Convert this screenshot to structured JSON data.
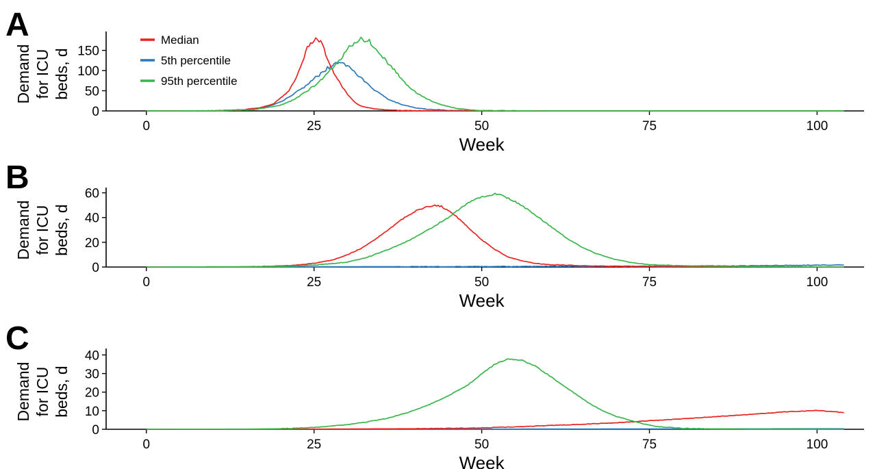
{
  "chart_data": [
    {
      "type": "line",
      "panel_label": "A",
      "xlabel": "Week",
      "ylabel_lines": [
        "Demand",
        "for ICU",
        "beds, d"
      ],
      "xlim": [
        -6,
        107
      ],
      "ylim": [
        0,
        190
      ],
      "xticks": [
        0,
        25,
        50,
        75,
        100
      ],
      "yticks": [
        0,
        50,
        100,
        150
      ],
      "legend": {
        "position": "top-left",
        "entries": [
          "Median",
          "5th percentile",
          "95th percentile"
        ]
      },
      "series": [
        {
          "name": "Median",
          "color": "#e8231f",
          "points": [
            [
              0,
              0
            ],
            [
              10,
              0.4
            ],
            [
              14,
              2
            ],
            [
              17,
              8
            ],
            [
              19,
              18
            ],
            [
              21,
              45
            ],
            [
              22,
              70
            ],
            [
              23,
              110
            ],
            [
              24,
              155
            ],
            [
              25,
              180
            ],
            [
              26,
              170
            ],
            [
              27,
              130
            ],
            [
              28,
              95
            ],
            [
              29,
              65
            ],
            [
              30,
              40
            ],
            [
              31,
              22
            ],
            [
              32,
              12
            ],
            [
              34,
              5
            ],
            [
              36,
              2
            ],
            [
              40,
              0.5
            ],
            [
              45,
              0
            ],
            [
              104,
              0
            ]
          ]
        },
        {
          "name": "5th percentile",
          "color": "#2a78b8",
          "points": [
            [
              0,
              0
            ],
            [
              10,
              0.3
            ],
            [
              15,
              3
            ],
            [
              18,
              10
            ],
            [
              20,
              22
            ],
            [
              22,
              42
            ],
            [
              24,
              65
            ],
            [
              25,
              80
            ],
            [
              26,
              92
            ],
            [
              27,
              106
            ],
            [
              28,
              115
            ],
            [
              29,
              120
            ],
            [
              30,
              112
            ],
            [
              31,
              97
            ],
            [
              32,
              82
            ],
            [
              33,
              66
            ],
            [
              34,
              52
            ],
            [
              35,
              40
            ],
            [
              36,
              30
            ],
            [
              38,
              16
            ],
            [
              40,
              8
            ],
            [
              42,
              4
            ],
            [
              45,
              1.5
            ],
            [
              50,
              0.5
            ],
            [
              55,
              0
            ],
            [
              104,
              0
            ]
          ]
        },
        {
          "name": "95th percentile",
          "color": "#39b54a",
          "points": [
            [
              0,
              0
            ],
            [
              10,
              0.3
            ],
            [
              16,
              3
            ],
            [
              20,
              14
            ],
            [
              22,
              28
            ],
            [
              24,
              50
            ],
            [
              26,
              75
            ],
            [
              28,
              110
            ],
            [
              29,
              130
            ],
            [
              30,
              155
            ],
            [
              31,
              170
            ],
            [
              32,
              180
            ],
            [
              33,
              175
            ],
            [
              34,
              160
            ],
            [
              35,
              140
            ],
            [
              36,
              120
            ],
            [
              37,
              100
            ],
            [
              38,
              80
            ],
            [
              39,
              62
            ],
            [
              40,
              48
            ],
            [
              42,
              28
            ],
            [
              44,
              15
            ],
            [
              46,
              7
            ],
            [
              48,
              3
            ],
            [
              50,
              1
            ],
            [
              55,
              0.3
            ],
            [
              60,
              0
            ],
            [
              104,
              0
            ]
          ]
        }
      ]
    },
    {
      "type": "line",
      "panel_label": "B",
      "xlabel": "Week",
      "ylabel_lines": [
        "Demand",
        "for ICU",
        "beds, d"
      ],
      "xlim": [
        -6,
        107
      ],
      "ylim": [
        0,
        62
      ],
      "xticks": [
        0,
        25,
        50,
        75,
        100
      ],
      "yticks": [
        0,
        20,
        40,
        60
      ],
      "series": [
        {
          "name": "Median",
          "color": "#e8231f",
          "points": [
            [
              0,
              0
            ],
            [
              15,
              0.2
            ],
            [
              20,
              0.8
            ],
            [
              23,
              1.8
            ],
            [
              25,
              3
            ],
            [
              28,
              6
            ],
            [
              30,
              10
            ],
            [
              32,
              15
            ],
            [
              34,
              22
            ],
            [
              36,
              30
            ],
            [
              38,
              38
            ],
            [
              40,
              45
            ],
            [
              42,
              49
            ],
            [
              43,
              50
            ],
            [
              44,
              49
            ],
            [
              46,
              42
            ],
            [
              48,
              32
            ],
            [
              50,
              22
            ],
            [
              52,
              14
            ],
            [
              54,
              8
            ],
            [
              56,
              5
            ],
            [
              58,
              3
            ],
            [
              60,
              2
            ],
            [
              65,
              1
            ],
            [
              70,
              0.5
            ],
            [
              75,
              0.3
            ],
            [
              80,
              0
            ],
            [
              104,
              0
            ]
          ]
        },
        {
          "name": "5th percentile",
          "color": "#2a78b8",
          "points": [
            [
              0,
              0
            ],
            [
              25,
              0.2
            ],
            [
              50,
              0.4
            ],
            [
              75,
              0.7
            ],
            [
              90,
              1
            ],
            [
              100,
              1.5
            ],
            [
              104,
              1.6
            ]
          ]
        },
        {
          "name": "95th percentile",
          "color": "#39b54a",
          "points": [
            [
              0,
              0
            ],
            [
              15,
              0.2
            ],
            [
              20,
              0.5
            ],
            [
              25,
              1.5
            ],
            [
              30,
              4
            ],
            [
              33,
              8
            ],
            [
              36,
              14
            ],
            [
              39,
              21
            ],
            [
              42,
              30
            ],
            [
              45,
              40
            ],
            [
              47,
              48
            ],
            [
              49,
              55
            ],
            [
              51,
              58
            ],
            [
              52,
              59
            ],
            [
              53,
              58
            ],
            [
              55,
              53
            ],
            [
              57,
              46
            ],
            [
              59,
              38
            ],
            [
              61,
              30
            ],
            [
              63,
              22
            ],
            [
              65,
              16
            ],
            [
              67,
              11
            ],
            [
              70,
              6
            ],
            [
              73,
              3
            ],
            [
              75,
              2
            ],
            [
              80,
              1
            ],
            [
              90,
              0.4
            ],
            [
              104,
              0
            ]
          ]
        }
      ]
    },
    {
      "type": "line",
      "panel_label": "C",
      "xlabel": "Week",
      "ylabel_lines": [
        "Demand",
        "for ICU",
        "beds, d"
      ],
      "xlim": [
        -6,
        107
      ],
      "ylim": [
        0,
        42
      ],
      "xticks": [
        0,
        25,
        50,
        75,
        100
      ],
      "yticks": [
        0,
        10,
        20,
        30,
        40
      ],
      "series": [
        {
          "name": "Median",
          "color": "#e8231f",
          "points": [
            [
              0,
              0
            ],
            [
              25,
              0.1
            ],
            [
              40,
              0.3
            ],
            [
              50,
              0.7
            ],
            [
              55,
              1.3
            ],
            [
              60,
              2
            ],
            [
              65,
              2.7
            ],
            [
              70,
              3.5
            ],
            [
              75,
              4.6
            ],
            [
              80,
              5.7
            ],
            [
              85,
              6.8
            ],
            [
              90,
              8
            ],
            [
              95,
              9.3
            ],
            [
              100,
              10.2
            ],
            [
              102,
              9.6
            ],
            [
              104,
              9
            ]
          ]
        },
        {
          "name": "5th percentile",
          "color": "#2a78b8",
          "points": [
            [
              0,
              0
            ],
            [
              50,
              0.1
            ],
            [
              75,
              0.2
            ],
            [
              104,
              0.3
            ]
          ]
        },
        {
          "name": "95th percentile",
          "color": "#39b54a",
          "points": [
            [
              0,
              0
            ],
            [
              15,
              0.1
            ],
            [
              20,
              0.3
            ],
            [
              25,
              1
            ],
            [
              30,
              2.5
            ],
            [
              33,
              4
            ],
            [
              36,
              6
            ],
            [
              39,
              9
            ],
            [
              42,
              13
            ],
            [
              45,
              18
            ],
            [
              48,
              24
            ],
            [
              50,
              30
            ],
            [
              52,
              35
            ],
            [
              54,
              38
            ],
            [
              56,
              37
            ],
            [
              58,
              34
            ],
            [
              60,
              29
            ],
            [
              62,
              24
            ],
            [
              64,
              19
            ],
            [
              66,
              14
            ],
            [
              68,
              10
            ],
            [
              70,
              7
            ],
            [
              72,
              5
            ],
            [
              74,
              3
            ],
            [
              76,
              1.5
            ],
            [
              80,
              0.5
            ],
            [
              85,
              0.2
            ],
            [
              104,
              0
            ]
          ]
        }
      ]
    }
  ]
}
